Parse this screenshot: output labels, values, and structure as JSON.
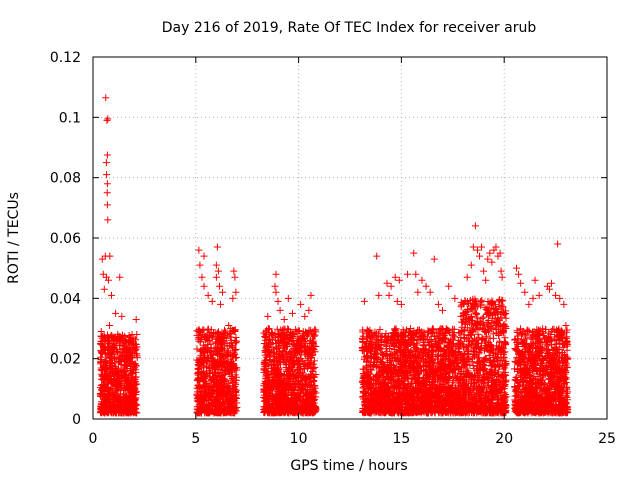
{
  "chart_data": {
    "type": "scatter",
    "title": "Day 216 of 2019, Rate Of TEC Index for receiver arub",
    "xlabel": "GPS time / hours",
    "ylabel": "ROTI / TECUs",
    "xlim": [
      0,
      25
    ],
    "ylim": [
      0,
      0.12
    ],
    "x_ticks": [
      0,
      5,
      10,
      15,
      20,
      25
    ],
    "x_tick_labels": [
      "0",
      "5",
      "10",
      "15",
      "20",
      "25"
    ],
    "y_ticks": [
      0,
      0.02,
      0.04,
      0.06,
      0.08,
      0.1,
      0.12
    ],
    "y_tick_labels": [
      "0",
      "0.02",
      "0.04",
      "0.06",
      "0.08",
      "0.1",
      "0.12"
    ],
    "grid": true,
    "marker": "+",
    "marker_color": "#ff0000",
    "series": [
      {
        "name": "ROTI",
        "points": [
          [
            0.62,
            0.1065
          ],
          [
            0.68,
            0.099
          ],
          [
            0.72,
            0.0995
          ],
          [
            0.7,
            0.0875
          ],
          [
            0.65,
            0.085
          ],
          [
            0.66,
            0.081
          ],
          [
            0.7,
            0.078
          ],
          [
            0.69,
            0.075
          ],
          [
            0.7,
            0.071
          ],
          [
            0.72,
            0.066
          ],
          [
            0.45,
            0.053
          ],
          [
            0.6,
            0.054
          ],
          [
            0.82,
            0.054
          ],
          [
            0.5,
            0.048
          ],
          [
            0.65,
            0.047
          ],
          [
            0.75,
            0.046
          ],
          [
            1.3,
            0.047
          ],
          [
            0.55,
            0.043
          ],
          [
            0.9,
            0.041
          ],
          [
            1.1,
            0.035
          ],
          [
            1.4,
            0.034
          ],
          [
            1.6,
            0.026
          ],
          [
            1.9,
            0.028
          ],
          [
            2.1,
            0.033
          ],
          [
            0.4,
            0.029
          ],
          [
            0.8,
            0.031
          ],
          [
            5.15,
            0.056
          ],
          [
            5.4,
            0.054
          ],
          [
            5.2,
            0.051
          ],
          [
            5.3,
            0.047
          ],
          [
            5.4,
            0.044
          ],
          [
            5.6,
            0.041
          ],
          [
            6.0,
            0.051
          ],
          [
            6.05,
            0.057
          ],
          [
            6.1,
            0.049
          ],
          [
            6.15,
            0.044
          ],
          [
            6.0,
            0.047
          ],
          [
            6.3,
            0.042
          ],
          [
            6.85,
            0.049
          ],
          [
            6.9,
            0.047
          ],
          [
            6.95,
            0.042
          ],
          [
            6.8,
            0.04
          ],
          [
            5.8,
            0.039
          ],
          [
            6.2,
            0.038
          ],
          [
            6.6,
            0.031
          ],
          [
            6.9,
            0.029
          ],
          [
            8.5,
            0.034
          ],
          [
            8.9,
            0.048
          ],
          [
            8.85,
            0.044
          ],
          [
            8.9,
            0.042
          ],
          [
            9.0,
            0.039
          ],
          [
            9.1,
            0.036
          ],
          [
            9.5,
            0.04
          ],
          [
            9.7,
            0.035
          ],
          [
            10.1,
            0.038
          ],
          [
            10.3,
            0.034
          ],
          [
            10.5,
            0.036
          ],
          [
            10.6,
            0.041
          ],
          [
            9.3,
            0.033
          ],
          [
            13.2,
            0.039
          ],
          [
            13.4,
            0.029
          ],
          [
            13.8,
            0.054
          ],
          [
            13.9,
            0.041
          ],
          [
            14.3,
            0.045
          ],
          [
            14.5,
            0.044
          ],
          [
            14.7,
            0.047
          ],
          [
            14.9,
            0.046
          ],
          [
            14.8,
            0.039
          ],
          [
            14.4,
            0.041
          ],
          [
            15.0,
            0.038
          ],
          [
            15.3,
            0.048
          ],
          [
            15.6,
            0.055
          ],
          [
            15.7,
            0.048
          ],
          [
            15.8,
            0.042
          ],
          [
            16.0,
            0.046
          ],
          [
            16.2,
            0.044
          ],
          [
            16.4,
            0.042
          ],
          [
            16.6,
            0.053
          ],
          [
            16.8,
            0.038
          ],
          [
            17.0,
            0.036
          ],
          [
            17.3,
            0.044
          ],
          [
            17.6,
            0.04
          ],
          [
            17.9,
            0.034
          ],
          [
            18.2,
            0.047
          ],
          [
            18.4,
            0.051
          ],
          [
            18.5,
            0.057
          ],
          [
            18.6,
            0.064
          ],
          [
            18.7,
            0.056
          ],
          [
            18.8,
            0.054
          ],
          [
            18.9,
            0.057
          ],
          [
            19.0,
            0.049
          ],
          [
            19.1,
            0.046
          ],
          [
            19.2,
            0.053
          ],
          [
            19.3,
            0.055
          ],
          [
            19.4,
            0.052
          ],
          [
            19.5,
            0.056
          ],
          [
            19.6,
            0.057
          ],
          [
            19.7,
            0.054
          ],
          [
            19.8,
            0.055
          ],
          [
            19.85,
            0.049
          ],
          [
            19.9,
            0.047
          ],
          [
            20.6,
            0.05
          ],
          [
            20.7,
            0.048
          ],
          [
            20.8,
            0.045
          ],
          [
            21.0,
            0.042
          ],
          [
            21.2,
            0.038
          ],
          [
            21.4,
            0.04
          ],
          [
            21.5,
            0.046
          ],
          [
            21.7,
            0.041
          ],
          [
            22.1,
            0.044
          ],
          [
            22.2,
            0.043
          ],
          [
            22.3,
            0.045
          ],
          [
            22.5,
            0.041
          ],
          [
            22.6,
            0.058
          ],
          [
            22.7,
            0.04
          ],
          [
            22.9,
            0.038
          ],
          [
            23.0,
            0.031
          ]
        ],
        "dense_bands": [
          {
            "x_range": [
              0.35,
              2.15
            ],
            "y_range": [
              0.002,
              0.028
            ]
          },
          {
            "x_range": [
              5.05,
              7.0
            ],
            "y_range": [
              0.002,
              0.03
            ]
          },
          {
            "x_range": [
              8.3,
              10.85
            ],
            "y_range": [
              0.002,
              0.03
            ]
          },
          {
            "x_range": [
              13.1,
              17.9
            ],
            "y_range": [
              0.002,
              0.03
            ]
          },
          {
            "x_range": [
              17.9,
              20.1
            ],
            "y_range": [
              0.002,
              0.04
            ]
          },
          {
            "x_range": [
              20.5,
              23.1
            ],
            "y_range": [
              0.002,
              0.03
            ]
          }
        ]
      }
    ]
  }
}
